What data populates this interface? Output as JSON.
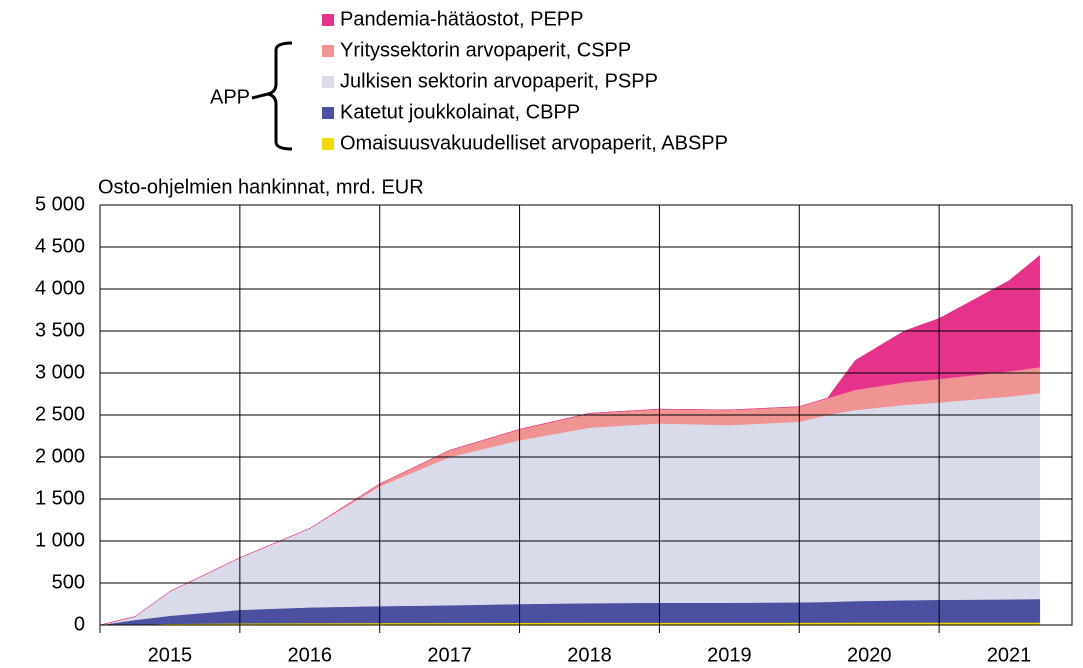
{
  "chart_data": {
    "type": "area",
    "ylabel": "Osto-ohjelmien hankinnat, mrd. EUR",
    "legend_group_label": "APP",
    "x": [
      2015.0,
      2015.25,
      2015.5,
      2016.0,
      2016.5,
      2017.0,
      2017.5,
      2018.0,
      2018.5,
      2019.0,
      2019.5,
      2020.0,
      2020.2,
      2020.4,
      2020.75,
      2021.0,
      2021.5,
      2021.72
    ],
    "series": [
      {
        "name": "Pandemia-hätäostot, PEPP",
        "color": "#e5338b",
        "values": [
          0,
          0,
          0,
          0,
          0,
          0,
          0,
          0,
          0,
          0,
          0,
          0,
          0,
          350,
          610,
          720,
          1080,
          1330
        ]
      },
      {
        "name": "Yrityssektorin arvopaperit, CSPP",
        "color": "#ef9393",
        "values": [
          0,
          0,
          0,
          0,
          0,
          30,
          80,
          130,
          170,
          170,
          180,
          180,
          200,
          240,
          270,
          280,
          300,
          310
        ]
      },
      {
        "name": "Julkisen sektorin arvopaperit, PSPP",
        "color": "#d9dbea",
        "values": [
          0,
          40,
          290,
          620,
          940,
          1425,
          1765,
          1950,
          2090,
          2135,
          2115,
          2150,
          2225,
          2275,
          2325,
          2350,
          2415,
          2450
        ]
      },
      {
        "name": "Katetut joukkolainat, CBPP",
        "color": "#4b50a0",
        "values": [
          0,
          55,
          95,
          160,
          187,
          201,
          210,
          223,
          232,
          237,
          237,
          241,
          246,
          255,
          265,
          270,
          275,
          280
        ]
      },
      {
        "name": "Omaisuusvakuudelliset arvopaperit, ABSPP",
        "color": "#f2d900",
        "values": [
          0,
          5,
          15,
          20,
          23,
          24,
          25,
          27,
          28,
          28,
          28,
          29,
          29,
          30,
          30,
          30,
          30,
          30
        ]
      }
    ],
    "xlim": [
      2015,
      2021.95
    ],
    "xticks": [
      2015,
      2016,
      2017,
      2018,
      2019,
      2020,
      2021
    ],
    "ylim": [
      0,
      5000
    ],
    "yticks": [
      0,
      500,
      {
        "value": 1000,
        "label": "1 000"
      },
      {
        "value": 1500,
        "label": "1 500"
      },
      {
        "value": 2000,
        "label": "2 000"
      },
      {
        "value": 2500,
        "label": "2 500"
      },
      {
        "value": 3000,
        "label": "3 000"
      },
      {
        "value": 3500,
        "label": "3 500"
      },
      {
        "value": 4000,
        "label": "4 000"
      },
      {
        "value": 4500,
        "label": "4 500"
      },
      {
        "value": 5000,
        "label": "5 000"
      }
    ],
    "grid": true
  }
}
